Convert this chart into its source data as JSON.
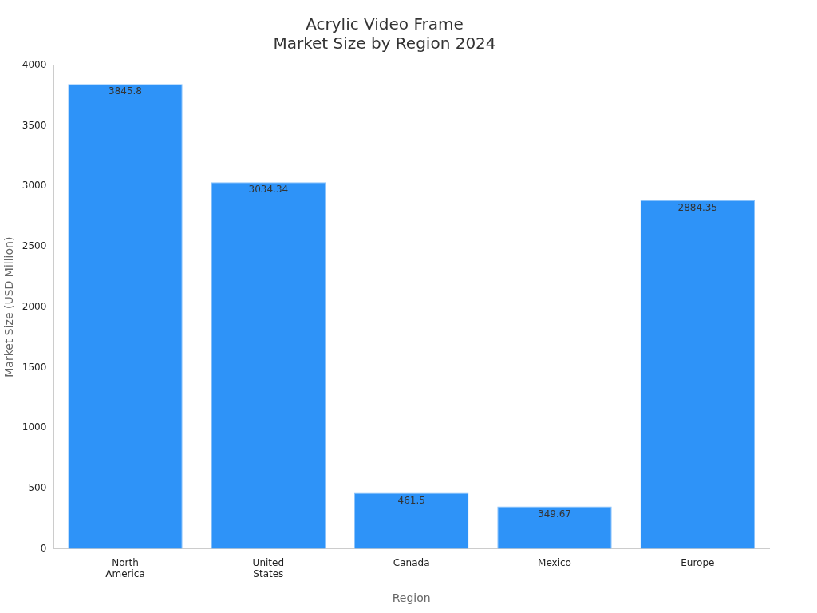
{
  "chart_data": {
    "type": "bar",
    "title": "Acrylic Video Frame\nMarket Size by Region 2024",
    "xlabel": "Region",
    "ylabel": "Market Size (USD Million)",
    "categories": [
      "North America",
      "United States",
      "Canada",
      "Mexico",
      "Europe"
    ],
    "values": [
      3845.8,
      3034.34,
      461.5,
      349.67,
      2884.35
    ],
    "color": "#2e93f8",
    "ylim": [
      0,
      4000
    ],
    "yticks": [
      0,
      500,
      1000,
      1500,
      2000,
      2500,
      3000,
      3500,
      4000
    ],
    "grid": false,
    "legend": false,
    "data_labels": true
  }
}
